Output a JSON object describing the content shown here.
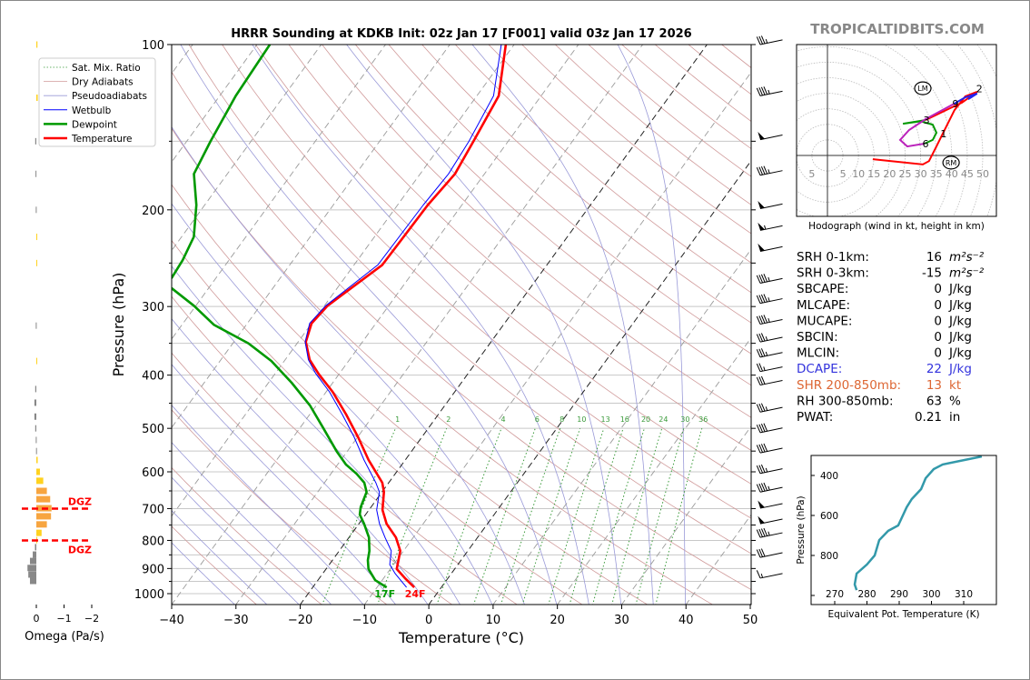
{
  "title": "HRRR Sounding at KDKB Init: 02z Jan 17 [F001] valid 03z Jan 17 2026",
  "watermark": "TROPICALTIDBITS.COM",
  "colors": {
    "temperature": "#ff0000",
    "dewpoint": "#009900",
    "wetbulb": "#0000ff",
    "dry_adiabat": "#d09a9a",
    "pseudoadiabat": "#9a9ad8",
    "mixing_ratio": "#3a9a3a",
    "isotherm": "#9a9a9a",
    "dgz": "#ff0000",
    "dcape": "#3333dd",
    "shear": "#dd6633",
    "theta_e": "#3399aa",
    "watermark": "#888888"
  },
  "legend": [
    {
      "label": "Sat. Mix. Ratio",
      "key": "mixing_ratio"
    },
    {
      "label": "Dry Adiabats",
      "key": "dry_adiabat"
    },
    {
      "label": "Pseudoadiabats",
      "key": "pseudoadiabat"
    },
    {
      "label": "Wetbulb",
      "key": "wetbulb"
    },
    {
      "label": "Dewpoint",
      "key": "dewpoint"
    },
    {
      "label": "Temperature",
      "key": "temperature"
    }
  ],
  "chart_data": [
    {
      "type": "line",
      "name": "skewt",
      "xlabel": "Temperature (°C)",
      "ylabel": "Pressure (hPa)",
      "xlim": [
        -40,
        50
      ],
      "ylim": [
        1050,
        100
      ],
      "y_scale": "log",
      "x_ticks": [
        -40,
        -30,
        -20,
        -10,
        0,
        10,
        20,
        30,
        40,
        50
      ],
      "y_ticks": [
        100,
        200,
        300,
        400,
        500,
        600,
        700,
        800,
        900,
        1000
      ],
      "y_minor_ticks": [
        150,
        250,
        350,
        450,
        550,
        650,
        750,
        850,
        950
      ],
      "mixing_ratio_labels": [
        1,
        2,
        4,
        6,
        8,
        10,
        13,
        16,
        20,
        24,
        30,
        36
      ],
      "surface_labels": {
        "dewpoint": "17F",
        "temperature": "24F"
      },
      "series": [
        {
          "name": "Temperature",
          "key": "temperature",
          "p": [
            100,
            124,
            150,
            172,
            196,
            252,
            299,
            322,
            348,
            375,
            398,
            429,
            472,
            519,
            571,
            628,
            653,
            704,
            746,
            790,
            836,
            902,
            937,
            974
          ],
          "t": [
            -51.3,
            -46.6,
            -45.4,
            -44.6,
            -45.3,
            -45.6,
            -49.5,
            -50.0,
            -48.8,
            -46.2,
            -43.2,
            -39.0,
            -34.3,
            -29.9,
            -25.7,
            -21.0,
            -19.7,
            -17.9,
            -15.7,
            -12.7,
            -10.5,
            -9.0,
            -6.7,
            -4.2
          ]
        },
        {
          "name": "Wetbulb",
          "key": "wetbulb",
          "p": [
            100,
            124,
            150,
            172,
            196,
            252,
            299,
            322,
            348,
            375,
            398,
            429,
            472,
            519,
            571,
            628,
            653,
            704,
            746,
            790,
            836,
            885,
            920,
            974
          ],
          "t": [
            -52.0,
            -47.4,
            -46.1,
            -45.6,
            -46.0,
            -46.3,
            -49.8,
            -50.3,
            -48.9,
            -46.4,
            -43.6,
            -39.5,
            -34.9,
            -30.5,
            -26.4,
            -22.0,
            -20.4,
            -18.8,
            -16.8,
            -14.4,
            -11.9,
            -10.6,
            -8.7,
            -5.4
          ]
        },
        {
          "name": "Dewpoint",
          "key": "dewpoint",
          "p": [
            100,
            124,
            150,
            172,
            196,
            224,
            247,
            266,
            272,
            278,
            299,
            324,
            350,
            377,
            413,
            454,
            500,
            550,
            582,
            605,
            628,
            653,
            696,
            718,
            746,
            790,
            836,
            869,
            902,
            945,
            974
          ],
          "t": [
            -88.0,
            -87.5,
            -86.3,
            -85.2,
            -81.3,
            -78.1,
            -77.2,
            -76.9,
            -77.5,
            -75.7,
            -70.3,
            -65.0,
            -57.6,
            -52.0,
            -46.4,
            -41.0,
            -36.3,
            -31.7,
            -28.7,
            -26.0,
            -23.8,
            -22.4,
            -21.6,
            -20.9,
            -19.2,
            -16.9,
            -15.3,
            -14.5,
            -13.4,
            -11.1,
            -8.5
          ]
        }
      ],
      "wind_barbs_kt": {
        "p": [
          100,
          124,
          149,
          173,
          199,
          218,
          238,
          272,
          296,
          323,
          348,
          371,
          394,
          417,
          467,
          509,
          554,
          604,
          653,
          699,
          746,
          790,
          859,
          937
        ],
        "speed": [
          35,
          45,
          50,
          45,
          50,
          55,
          50,
          45,
          45,
          45,
          35,
          35,
          25,
          30,
          35,
          40,
          40,
          35,
          45,
          50,
          50,
          45,
          30,
          15
        ]
      }
    },
    {
      "type": "bar",
      "name": "omega",
      "xlabel": "Omega (Pa/s)",
      "x_ticks": [
        0,
        -1,
        -2
      ],
      "x_tick_labels": [
        "0",
        "−1",
        "−2"
      ],
      "p": [
        100,
        125,
        150,
        172,
        200,
        224,
        250,
        325,
        377,
        424,
        449,
        476,
        500,
        525,
        550,
        571,
        600,
        623,
        650,
        673,
        699,
        723,
        748,
        775,
        799,
        823,
        849,
        872,
        898,
        923,
        948
      ],
      "omega": [
        -0.04,
        -0.05,
        0.04,
        0.03,
        0.02,
        -0.02,
        -0.02,
        0.02,
        -0.02,
        0.04,
        0.07,
        0.07,
        0.04,
        0.02,
        0.01,
        -0.05,
        -0.13,
        -0.25,
        -0.38,
        -0.5,
        -0.55,
        -0.53,
        -0.38,
        -0.19,
        -0.03,
        0.05,
        0.13,
        0.23,
        0.32,
        0.29,
        0.23
      ],
      "dgz": {
        "label": "DGZ",
        "p_top": 700,
        "p_bottom": 800
      }
    },
    {
      "type": "line",
      "name": "hodograph",
      "caption": "Hodograph (wind in kt, height in km)",
      "x_tick_values": [
        -5,
        5,
        10,
        15,
        20,
        25,
        30,
        35,
        40,
        45,
        50
      ],
      "x_tick_labels": [
        "5",
        "5",
        "10",
        "15",
        "20",
        "25",
        "30",
        "35",
        "40",
        "45",
        "50"
      ],
      "ring_interval_kt": 5,
      "segments": [
        {
          "color": "#ff0000",
          "u": [
            14.6,
            30.7,
            32.7,
            35.1,
            37.1,
            40.9,
            44.4,
            48.2,
            43.3,
            39.5,
            31.6
          ],
          "v": [
            -1.2,
            -2.9,
            -1.8,
            2.9,
            7.0,
            14.6,
            19.0,
            20.5,
            17.0,
            15.2,
            11.4
          ]
        },
        {
          "color": "#009900",
          "u": [
            31.6,
            24.3,
            30.0,
            33.9,
            35.1,
            33.9,
            31.3
          ],
          "v": [
            11.4,
            10.2,
            11.0,
            9.9,
            7.3,
            5.0,
            3.8
          ]
        },
        {
          "color": "#bb22bb",
          "u": [
            31.3,
            25.7,
            23.4,
            26.3,
            31.6,
            40.9
          ],
          "v": [
            3.8,
            2.9,
            5.0,
            8.2,
            11.7,
            16.7
          ]
        },
        {
          "color": "#2222ee",
          "u": [
            40.9,
            44.4,
            48.2,
            45.3
          ],
          "v": [
            16.7,
            18.7,
            19.9,
            18.1
          ]
        }
      ],
      "height_labels": [
        {
          "text": "1",
          "u": 37.1,
          "v": 7.0
        },
        {
          "text": "2",
          "u": 48.6,
          "v": 21.5
        },
        {
          "text": "3",
          "u": 31.6,
          "v": 11.4
        },
        {
          "text": "6",
          "u": 31.3,
          "v": 3.8
        },
        {
          "text": "9",
          "u": 40.9,
          "v": 16.7
        }
      ],
      "storm_motion": [
        {
          "text": "LM",
          "u": 30.7,
          "v": 21.6
        },
        {
          "text": "RM",
          "u": 39.8,
          "v": -2.3
        }
      ]
    },
    {
      "type": "line",
      "name": "theta_e",
      "xlabel": "Equivalent Pot. Temperature (K)",
      "ylabel": "Pressure (hPa)",
      "x_ticks": [
        270,
        280,
        290,
        300,
        310
      ],
      "y_ticks": [
        400,
        600,
        800,
        1000
      ],
      "y_tick_labels": [
        "400",
        "600",
        "800",
        ""
      ],
      "theta_e": [
        315.6,
        303.5,
        300.7,
        298.2,
        296.8,
        293.9,
        292.3,
        289.7,
        286.6,
        283.8,
        282.4,
        280.0,
        276.8,
        276.2,
        276.8
      ],
      "p": [
        305,
        345,
        368,
        414,
        468,
        518,
        559,
        650,
        677,
        723,
        800,
        845,
        891,
        945,
        973
      ]
    }
  ],
  "stats": [
    {
      "label": "SRH 0-1km:",
      "value": "16",
      "unit": "m²s⁻²",
      "color": "#000000"
    },
    {
      "label": "SRH 0-3km:",
      "value": "-15",
      "unit": "m²s⁻²",
      "color": "#000000"
    },
    {
      "label": "SBCAPE:",
      "value": "0",
      "unit": "J/kg",
      "color": "#000000"
    },
    {
      "label": "MLCAPE:",
      "value": "0",
      "unit": "J/kg",
      "color": "#000000"
    },
    {
      "label": "MUCAPE:",
      "value": "0",
      "unit": "J/kg",
      "color": "#000000"
    },
    {
      "label": "SBCIN:",
      "value": "0",
      "unit": "J/kg",
      "color": "#000000"
    },
    {
      "label": "MLCIN:",
      "value": "0",
      "unit": "J/kg",
      "color": "#000000"
    },
    {
      "label": "DCAPE:",
      "value": "22",
      "unit": "J/kg",
      "color": "#3333dd"
    },
    {
      "label": "SHR 200-850mb:",
      "value": "13",
      "unit": "kt",
      "color": "#dd6633"
    },
    {
      "label": "RH 300-850mb:",
      "value": "63",
      "unit": "%",
      "color": "#000000"
    },
    {
      "label": "PWAT:",
      "value": "0.21",
      "unit": "in",
      "color": "#000000"
    }
  ]
}
